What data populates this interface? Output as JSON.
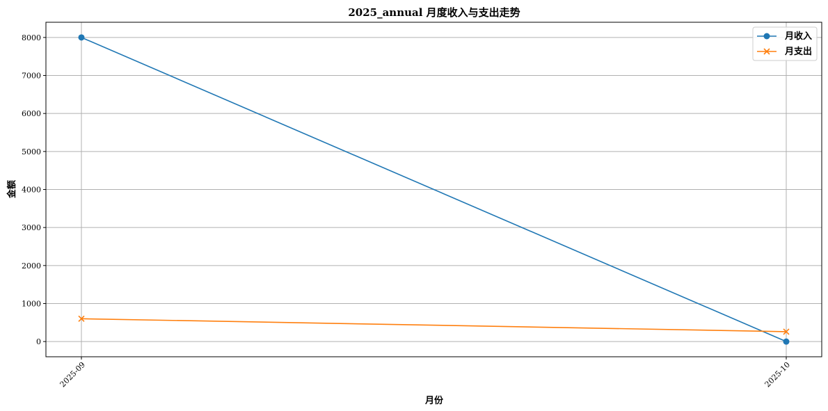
{
  "chart_data": {
    "type": "line",
    "title": "2025_annual 月度收入与支出走势",
    "xlabel": "月份",
    "ylabel": "金额",
    "categories": [
      "2025-09",
      "2025-10"
    ],
    "series": [
      {
        "name": "月收入",
        "values": [
          8000,
          0
        ],
        "color": "#1f77b4",
        "marker": "circle"
      },
      {
        "name": "月支出",
        "values": [
          600,
          260
        ],
        "color": "#ff7f0e",
        "marker": "x"
      }
    ],
    "ylim": [
      -400,
      8400
    ],
    "yticks": [
      0,
      1000,
      2000,
      3000,
      4000,
      5000,
      6000,
      7000,
      8000
    ],
    "grid": true,
    "legend_position": "top-right",
    "xtick_rotation": 45
  }
}
